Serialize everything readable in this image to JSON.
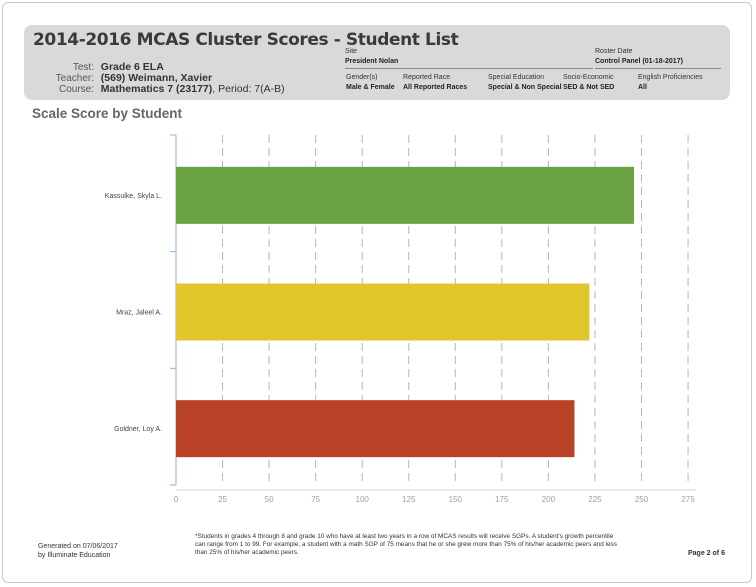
{
  "report": {
    "title": "2014-2016 MCAS Cluster Scores - Student List",
    "test_label": "Test:",
    "test_value": "Grade 6 ELA",
    "teacher_label": "Teacher:",
    "teacher_value": "(569) Weimann, Xavier",
    "course_label": "Course:",
    "course_value": "Mathematics 7 (23177)",
    "course_period": ", Period: 7(A-B)"
  },
  "filters": {
    "site_label": "Site",
    "site_value": "President Nolan",
    "roster_label": "Roster Date",
    "roster_value": "Control Panel (01-18-2017)",
    "gender_label": "Gender(s)",
    "gender_value": "Male & Female",
    "race_label": "Reported Race",
    "race_value": "All Reported Races",
    "sped_label": "Special Education",
    "sped_value": "Special & Non Special",
    "ses_label": "Socio-Economic",
    "ses_value": "SED & Not SED",
    "ell_label": "English Proficiencies",
    "ell_value": "All"
  },
  "section_title": "Scale Score by Student",
  "chart_data": {
    "type": "bar",
    "orientation": "horizontal",
    "title": "Scale Score by Student",
    "categories": [
      "Kassulke, Skyla L.",
      "Mraz, Jaleel A.",
      "Goldner, Loy A."
    ],
    "values": [
      246,
      222,
      214
    ],
    "colors": [
      "#6aa342",
      "#e2c52a",
      "#b94126"
    ],
    "xlim": [
      0,
      275
    ],
    "xticks": [
      0,
      25,
      50,
      75,
      100,
      125,
      150,
      175,
      200,
      225,
      250,
      275
    ],
    "grid": "vertical dashed"
  },
  "footer": {
    "generated_line1": "Generated on 07/06/2017",
    "generated_line2": "by Illuminate Education",
    "note": "*Students in grades 4 through 8 and grade 10 who have at least two years in a row of MCAS results will receive SGPs. A student's growth percentile can range from 1 to 99. For example, a student with a math SGP of 75 means that he or she grew more than 75% of his/her academic peers and less than 25% of his/her academic peers.",
    "page": "Page 2 of 6"
  }
}
